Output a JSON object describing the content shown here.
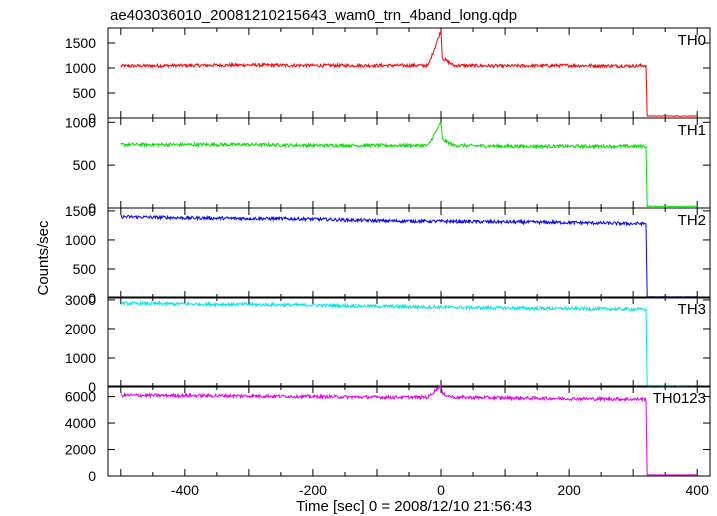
{
  "chart_data": {
    "type": "line",
    "title": "ae403036010_20081210215643_wam0_trn_4band_long.qdp",
    "xlabel": "Time [sec] 0 = 2008/12/10 21:56:43",
    "ylabel": "Counts/sec",
    "xlim": [
      -520,
      420
    ],
    "x_ticks": [
      -400,
      -200,
      0,
      200,
      400
    ],
    "grid": false,
    "panels": [
      {
        "name": "TH0",
        "color": "#ff0000",
        "ylim": [
          0,
          1800
        ],
        "y_ticks": [
          0,
          500,
          1000,
          1500
        ],
        "x": [
          -500,
          -400,
          -300,
          -200,
          -100,
          -20,
          0,
          2,
          20,
          100,
          200,
          300,
          320,
          322,
          400
        ],
        "y": [
          1040,
          1050,
          1060,
          1050,
          1050,
          1050,
          1750,
          1200,
          1050,
          1040,
          1050,
          1040,
          1050,
          40,
          40
        ]
      },
      {
        "name": "TH1",
        "color": "#00e000",
        "ylim": [
          0,
          1050
        ],
        "y_ticks": [
          0,
          500,
          1000
        ],
        "x": [
          -500,
          -400,
          -300,
          -200,
          -100,
          -20,
          0,
          2,
          20,
          100,
          200,
          300,
          320,
          322,
          400
        ],
        "y": [
          740,
          740,
          740,
          730,
          730,
          730,
          1000,
          800,
          730,
          720,
          720,
          720,
          720,
          20,
          20
        ]
      },
      {
        "name": "TH2",
        "color": "#0000ff",
        "ylim": [
          0,
          1550
        ],
        "y_ticks": [
          0,
          500,
          1000,
          1500
        ],
        "x": [
          -500,
          -400,
          -300,
          -200,
          -100,
          0,
          100,
          200,
          300,
          320,
          322,
          400
        ],
        "y": [
          1400,
          1380,
          1370,
          1360,
          1330,
          1320,
          1310,
          1300,
          1280,
          1280,
          20,
          20
        ]
      },
      {
        "name": "TH3",
        "color": "#00e5e5",
        "ylim": [
          0,
          3100
        ],
        "y_ticks": [
          0,
          1000,
          2000,
          3000
        ],
        "x": [
          -500,
          -400,
          -300,
          -200,
          -100,
          0,
          100,
          200,
          300,
          320,
          322,
          400
        ],
        "y": [
          2880,
          2860,
          2840,
          2820,
          2780,
          2750,
          2720,
          2700,
          2680,
          2670,
          30,
          30
        ]
      },
      {
        "name": "TH0123",
        "color": "#e000e0",
        "ylim": [
          0,
          6800
        ],
        "y_ticks": [
          0,
          2000,
          4000,
          6000
        ],
        "x": [
          -500,
          -400,
          -300,
          -200,
          -100,
          -20,
          0,
          2,
          20,
          100,
          200,
          300,
          320,
          322,
          400
        ],
        "y": [
          6100,
          6080,
          6050,
          6000,
          5950,
          5950,
          6900,
          6200,
          5950,
          5900,
          5850,
          5800,
          5800,
          80,
          80
        ]
      }
    ]
  }
}
